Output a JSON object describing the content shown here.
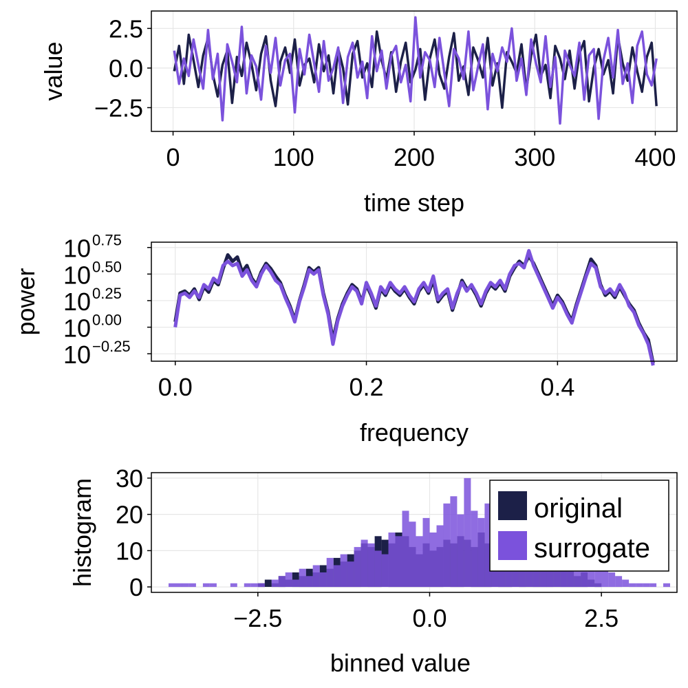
{
  "colors": {
    "original": "#1c2048",
    "surrogate": "#7b52dc"
  },
  "chart_data": [
    {
      "type": "line",
      "xlabel": "time step",
      "ylabel": "value",
      "xlim": [
        -18,
        418
      ],
      "ylim": [
        -4.0,
        3.6
      ],
      "xticks": [
        0,
        100,
        200,
        300,
        400
      ],
      "yticks": [
        -2.5,
        0.0,
        2.5
      ],
      "ytick_labels": [
        "−2.5",
        "0.0",
        "2.5"
      ],
      "xtick_labels": [
        "0",
        "100",
        "200",
        "300",
        "400"
      ],
      "grid": true,
      "series": [
        {
          "name": "original",
          "color": "#1c2048",
          "x_start": 1,
          "x_step": 4,
          "values": [
            -0.2,
            1.4,
            -1.0,
            2.1,
            0.5,
            -1.2,
            0.8,
            1.9,
            -0.4,
            -1.8,
            0.2,
            1.1,
            -2.2,
            0.7,
            -0.5,
            1.6,
            0.3,
            -1.4,
            0.9,
            2.0,
            -0.8,
            -2.4,
            0.4,
            1.3,
            -0.3,
            1.8,
            -1.1,
            0.2,
            0.6,
            -0.9,
            1.5,
            -0.2,
            0.8,
            -1.6,
            1.2,
            0.0,
            -2.3,
            0.9,
            1.7,
            -0.6,
            0.3,
            -1.2,
            2.3,
            0.5,
            -0.7,
            1.0,
            -1.5,
            0.4,
            1.6,
            -0.9,
            -0.1,
            1.2,
            -2.0,
            0.6,
            1.8,
            -0.4,
            -1.3,
            0.7,
            2.2,
            -0.8,
            0.1,
            -1.7,
            1.3,
            0.5,
            -0.6,
            1.9,
            -1.1,
            0.3,
            -2.5,
            1.0,
            0.4,
            -0.3,
            1.5,
            -1.4,
            0.8,
            2.1,
            -0.5,
            0.2,
            -1.9,
            1.4,
            0.6,
            -0.7,
            1.1,
            -1.3,
            0.9,
            1.7,
            -2.1,
            0.0,
            1.2,
            -0.4,
            0.5,
            -1.6,
            2.0,
            0.3,
            -0.8,
            1.3,
            -0.2,
            -1.5,
            0.7,
            1.6,
            -2.4
          ]
        },
        {
          "name": "surrogate",
          "color": "#7b52dc",
          "x_start": 1,
          "x_step": 4,
          "values": [
            1.1,
            -1.0,
            0.6,
            -0.5,
            1.8,
            0.2,
            -1.3,
            2.4,
            -0.7,
            0.9,
            -3.3,
            1.5,
            0.4,
            -0.9,
            2.6,
            -1.6,
            0.8,
            0.1,
            -2.0,
            1.4,
            -0.3,
            1.9,
            -1.1,
            0.5,
            0.9,
            -2.8,
            1.2,
            -0.4,
            2.1,
            0.3,
            -1.5,
            1.7,
            -0.8,
            0.0,
            1.3,
            -2.2,
            0.7,
            1.6,
            -0.6,
            0.4,
            -1.9,
            2.0,
            -0.2,
            1.1,
            -1.3,
            0.8,
            1.4,
            -0.9,
            0.2,
            -2.1,
            3.2,
            -0.6,
            1.0,
            0.5,
            -1.2,
            1.9,
            -0.3,
            -2.4,
            1.2,
            0.6,
            -0.7,
            2.3,
            -1.4,
            0.1,
            1.5,
            -2.6,
            0.9,
            -0.2,
            1.3,
            0.4,
            2.5,
            -0.8,
            0.6,
            -1.7,
            1.8,
            0.3,
            -0.9,
            2.0,
            -1.2,
            0.7,
            -3.5,
            1.1,
            0.2,
            -0.5,
            1.6,
            -2.0,
            0.8,
            1.2,
            -3.2,
            0.5,
            1.9,
            -0.6,
            2.4,
            -1.0,
            0.3,
            -2.2,
            1.4,
            2.3,
            -0.4,
            -1.1,
            0.6
          ]
        }
      ]
    },
    {
      "type": "line",
      "xlabel": "frequency",
      "ylabel": "power",
      "xlim": [
        -0.025,
        0.525
      ],
      "ylim": [
        -0.32,
        0.8
      ],
      "yscale": "log10",
      "xticks": [
        0.0,
        0.2,
        0.4
      ],
      "xtick_labels": [
        "0.0",
        "0.2",
        "0.4"
      ],
      "yticks": [
        -0.25,
        0.0,
        0.25,
        0.5,
        0.75
      ],
      "ytick_base": "10",
      "ytick_exponents": [
        "−0.25",
        "0.00",
        "0.25",
        "0.50",
        "0.75"
      ],
      "grid": true,
      "series": [
        {
          "name": "original",
          "color": "#1c2048",
          "x_start": 0.0,
          "x_step": 0.005,
          "values": [
            0.05,
            0.32,
            0.34,
            0.3,
            0.36,
            0.26,
            0.38,
            0.33,
            0.44,
            0.4,
            0.55,
            0.68,
            0.62,
            0.66,
            0.52,
            0.58,
            0.46,
            0.4,
            0.52,
            0.6,
            0.55,
            0.48,
            0.42,
            0.3,
            0.2,
            0.07,
            0.25,
            0.4,
            0.56,
            0.52,
            0.56,
            0.32,
            0.14,
            -0.12,
            0.08,
            0.22,
            0.32,
            0.4,
            0.36,
            0.24,
            0.4,
            0.3,
            0.18,
            0.36,
            0.3,
            0.4,
            0.34,
            0.3,
            0.36,
            0.28,
            0.22,
            0.34,
            0.4,
            0.32,
            0.44,
            0.24,
            0.3,
            0.34,
            0.16,
            0.3,
            0.44,
            0.36,
            0.38,
            0.3,
            0.2,
            0.32,
            0.4,
            0.36,
            0.42,
            0.34,
            0.48,
            0.56,
            0.62,
            0.58,
            0.67,
            0.6,
            0.5,
            0.4,
            0.3,
            0.2,
            0.3,
            0.24,
            0.14,
            0.06,
            0.22,
            0.36,
            0.5,
            0.64,
            0.58,
            0.4,
            0.3,
            0.34,
            0.28,
            0.38,
            0.3,
            0.22,
            0.16,
            0.04,
            -0.05,
            -0.12,
            -0.34
          ]
        },
        {
          "name": "surrogate",
          "color": "#7b52dc",
          "x_start": 0.0,
          "x_step": 0.005,
          "values": [
            0.0,
            0.3,
            0.32,
            0.28,
            0.34,
            0.28,
            0.4,
            0.36,
            0.46,
            0.42,
            0.58,
            0.62,
            0.58,
            0.6,
            0.48,
            0.54,
            0.44,
            0.38,
            0.5,
            0.58,
            0.52,
            0.44,
            0.4,
            0.28,
            0.18,
            0.05,
            0.24,
            0.38,
            0.54,
            0.5,
            0.54,
            0.3,
            0.12,
            -0.16,
            0.06,
            0.2,
            0.3,
            0.38,
            0.34,
            0.22,
            0.42,
            0.32,
            0.2,
            0.38,
            0.32,
            0.42,
            0.36,
            0.32,
            0.38,
            0.3,
            0.24,
            0.36,
            0.42,
            0.34,
            0.48,
            0.26,
            0.32,
            0.36,
            0.18,
            0.32,
            0.42,
            0.34,
            0.4,
            0.32,
            0.22,
            0.34,
            0.42,
            0.38,
            0.44,
            0.36,
            0.5,
            0.58,
            0.6,
            0.56,
            0.72,
            0.58,
            0.48,
            0.38,
            0.28,
            0.18,
            0.28,
            0.22,
            0.12,
            0.04,
            0.2,
            0.34,
            0.48,
            0.6,
            0.56,
            0.38,
            0.32,
            0.36,
            0.3,
            0.4,
            0.32,
            0.2,
            0.14,
            0.02,
            -0.06,
            -0.16,
            -0.36
          ]
        }
      ]
    },
    {
      "type": "bar",
      "xlabel": "binned value",
      "ylabel": "histogram",
      "xlim": [
        -4.05,
        3.6
      ],
      "ylim": [
        -1.5,
        31.5
      ],
      "xticks": [
        -2.5,
        0.0,
        2.5
      ],
      "xtick_labels": [
        "−2.5",
        "0.0",
        "2.5"
      ],
      "yticks": [
        0,
        10,
        20,
        30
      ],
      "ytick_labels": [
        "0",
        "10",
        "20",
        "30"
      ],
      "grid": true,
      "legend": "top-right",
      "bin_width": 0.1,
      "series": [
        {
          "name": "original",
          "color": "#1c2048",
          "bin_start": -2.5,
          "counts": [
            1,
            2,
            1,
            3,
            2,
            4,
            3,
            5,
            4,
            6,
            5,
            8,
            7,
            9,
            10,
            12,
            11,
            14,
            13,
            12,
            15,
            14,
            11,
            9,
            12,
            10,
            11,
            13,
            12,
            14,
            13,
            11,
            15,
            12,
            13,
            14,
            11,
            13,
            12,
            10,
            9,
            8,
            10,
            7,
            6,
            5,
            3,
            4,
            2,
            1
          ]
        },
        {
          "name": "surrogate",
          "color": "#7b52dc",
          "bin_start": -3.8,
          "counts": [
            1,
            1,
            1,
            1,
            0,
            1,
            1,
            0,
            0,
            1,
            0,
            1,
            1,
            1,
            0,
            2,
            3,
            4,
            2,
            5,
            3,
            6,
            4,
            8,
            6,
            9,
            7,
            11,
            13,
            12,
            10,
            9,
            15,
            14,
            21,
            18,
            14,
            19,
            15,
            17,
            23,
            25,
            20,
            30,
            21,
            19,
            23,
            16,
            22,
            17,
            15,
            14,
            13,
            18,
            15,
            16,
            13,
            12,
            11,
            10,
            8,
            9,
            6,
            5,
            4,
            3,
            2,
            1,
            1,
            1,
            1,
            0,
            1
          ]
        }
      ],
      "legend_entries": [
        "original",
        "surrogate"
      ]
    }
  ]
}
